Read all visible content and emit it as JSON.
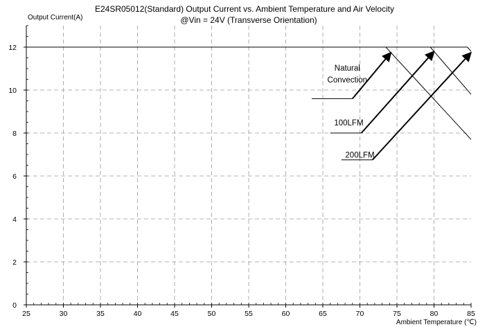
{
  "chart_data": {
    "type": "line",
    "title": "E24SR05012(Standard)  Output Current vs. Ambient Temperature and Air Velocity",
    "subtitle": "@Vin = 24V (Transverse Orientation)",
    "ylabel": "Output Current(A)",
    "xlabel": "Ambient Temperature (℃)",
    "xlim": [
      25,
      85
    ],
    "ylim": [
      0,
      13
    ],
    "xticks": [
      25,
      30,
      35,
      40,
      45,
      50,
      55,
      60,
      65,
      70,
      75,
      80,
      85
    ],
    "yticks": [
      0,
      2,
      4,
      6,
      8,
      10,
      12
    ],
    "grid": true,
    "series": [
      {
        "name": "Natural Convection",
        "x": [
          25,
          73.5,
          85
        ],
        "y": [
          12,
          12,
          7.7
        ]
      },
      {
        "name": "100LFM",
        "x": [
          25,
          79.5,
          85
        ],
        "y": [
          12,
          12,
          9.8
        ]
      },
      {
        "name": "200LFM",
        "x": [
          25,
          84.5,
          85
        ],
        "y": [
          12,
          12,
          11.8
        ]
      }
    ],
    "annotations": [
      {
        "text": "Natural",
        "label_at": [
          68.3,
          10.9
        ],
        "leader": [
          [
            63.5,
            9.6
          ],
          [
            69,
            9.6
          ]
        ],
        "arrow": [
          [
            69,
            9.6
          ],
          [
            74.2,
            11.75
          ]
        ]
      },
      {
        "text": "Convection",
        "label_at": [
          68.3,
          10.35
        ]
      },
      {
        "text": "100LFM",
        "label_at": [
          68.5,
          8.35
        ],
        "leader": [
          [
            66,
            8.0
          ],
          [
            70.2,
            8.0
          ]
        ],
        "arrow": [
          [
            70.2,
            8.0
          ],
          [
            80,
            11.8
          ]
        ]
      },
      {
        "text": "200LFM",
        "label_at": [
          70,
          6.85
        ],
        "leader": [
          [
            67.5,
            6.75
          ],
          [
            71.7,
            6.75
          ]
        ],
        "arrow": [
          [
            71.7,
            6.75
          ],
          [
            85,
            11.75
          ]
        ]
      }
    ]
  }
}
